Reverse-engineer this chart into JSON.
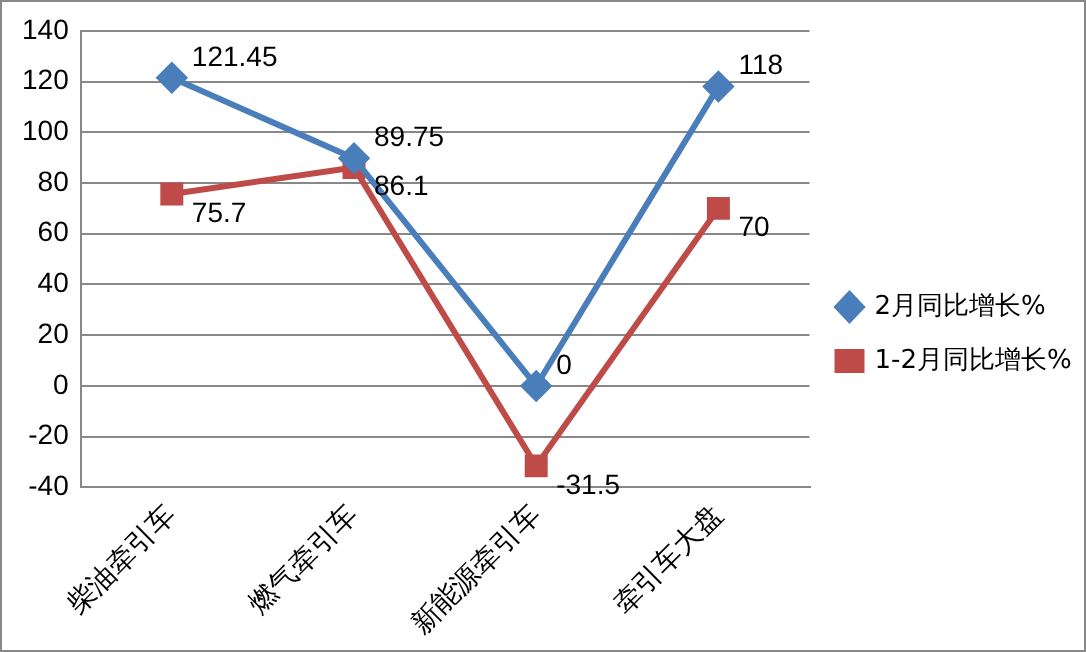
{
  "chart_data": {
    "type": "line",
    "categories": [
      "柴油牵引车",
      "燃气牵引车",
      "新能源牵引车",
      "牵引车大盘"
    ],
    "series": [
      {
        "name": "2月同比增长%",
        "color": "#4a7ebb",
        "marker": "diamond",
        "values": [
          121.45,
          89.75,
          0,
          118
        ]
      },
      {
        "name": "1-2月同比增长%",
        "color": "#be4b48",
        "marker": "square",
        "values": [
          75.7,
          86.1,
          -31.5,
          70
        ]
      }
    ],
    "ylim": [
      -40,
      140
    ],
    "yticks": [
      -40,
      -20,
      0,
      20,
      40,
      60,
      80,
      100,
      120,
      140
    ],
    "grid": "y",
    "legend": "right",
    "data_labels": true
  }
}
